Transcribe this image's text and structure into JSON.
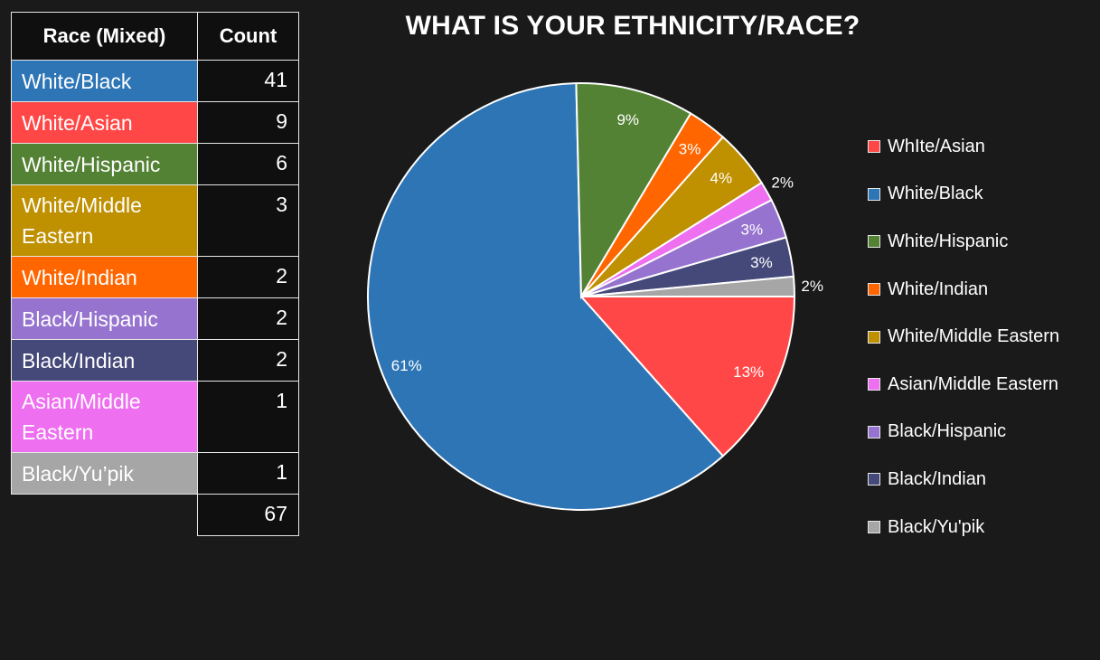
{
  "table": {
    "headers": [
      "Race (Mixed)",
      "Count"
    ],
    "rows": [
      {
        "label": "White/Black",
        "count": "41",
        "color": "#2e75b6",
        "lines": 1
      },
      {
        "label": "White/Asian",
        "count": "9",
        "color": "#ff4747",
        "lines": 1
      },
      {
        "label": "White/Hispanic",
        "count": "6",
        "color": "#548235",
        "lines": 1
      },
      {
        "label": "White/Middle Eastern",
        "count": "3",
        "color": "#bf9000",
        "lines": 2
      },
      {
        "label": "White/Indian",
        "count": "2",
        "color": "#ff6600",
        "lines": 1
      },
      {
        "label": "Black/Hispanic",
        "count": "2",
        "color": "#9673cf",
        "lines": 1
      },
      {
        "label": "Black/Indian",
        "count": "2",
        "color": "#44497a",
        "lines": 1
      },
      {
        "label": "Asian/Middle Eastern",
        "count": "1",
        "color": "#ee6fef",
        "lines": 2
      },
      {
        "label": "Black/Yu’pik",
        "count": "1",
        "color": "#a6a6a6",
        "lines": 1
      }
    ],
    "total": "67"
  },
  "chart_data": {
    "type": "pie",
    "title": "WHAT IS YOUR ETHNICITY/RACE?",
    "legend_position": "right",
    "slices": [
      {
        "name": "WhIte/Asian",
        "value": 9,
        "label": "13%",
        "color": "#ff4747"
      },
      {
        "name": "White/Black",
        "value": 41,
        "label": "61%",
        "color": "#2e75b6"
      },
      {
        "name": "White/Hispanic",
        "value": 6,
        "label": "9%",
        "color": "#548235"
      },
      {
        "name": "White/Indian",
        "value": 2,
        "label": "3%",
        "color": "#ff6600"
      },
      {
        "name": "White/Middle Eastern",
        "value": 3,
        "label": "4%",
        "color": "#bf9000"
      },
      {
        "name": "Asian/Middle Eastern",
        "value": 1,
        "label": "2%",
        "color": "#ee6fef"
      },
      {
        "name": "Black/Hispanic",
        "value": 2,
        "label": "3%",
        "color": "#9673cf"
      },
      {
        "name": "Black/Indian",
        "value": 2,
        "label": "3%",
        "color": "#44497a"
      },
      {
        "name": "Black/Yu'pik",
        "value": 1,
        "label": "2%",
        "color": "#a6a6a6"
      }
    ]
  }
}
